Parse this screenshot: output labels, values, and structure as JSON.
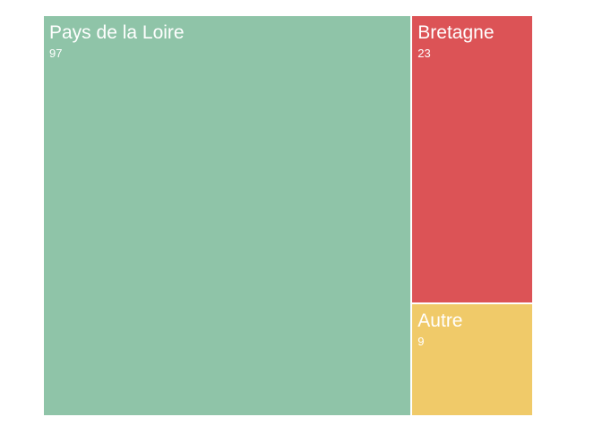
{
  "chart_data": {
    "type": "treemap",
    "items": [
      {
        "label": "Pays de la Loire",
        "value": 97,
        "display": "97",
        "color": "#8fc4a8"
      },
      {
        "label": "Bretagne",
        "value": 23,
        "display": "23",
        "color": "#dc5356"
      },
      {
        "label": "Autre",
        "value": 9,
        "display": "9",
        "color": "#f0ca69"
      }
    ]
  }
}
